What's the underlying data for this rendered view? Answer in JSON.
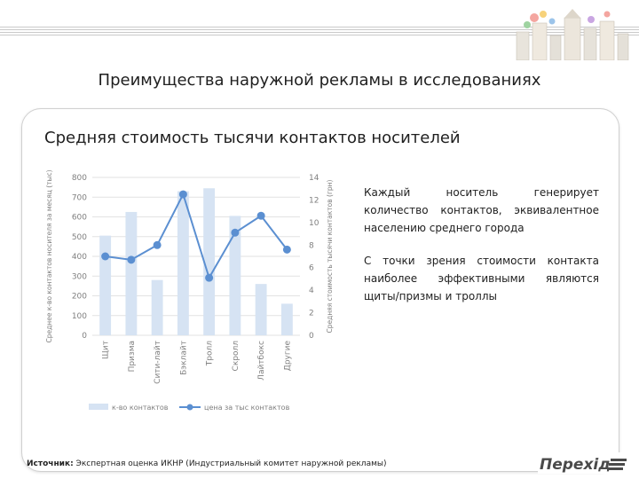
{
  "slide": {
    "title": "Преимущества наружной рекламы в исследованиях",
    "subtitle": "Средняя стоимость тысячи контактов носителей",
    "text1": "Каждый носитель генерирует количество контактов, эквивалентное населению среднего города",
    "text2": "С точки зрения стоимости контакта наиболее эффективными являются щиты/призмы и троллы",
    "source_label": "Источник:",
    "source_text": " Экспертная оценка ИКНР (Индустриальный комитет наружной рекламы)",
    "logo_text": "Перехід"
  },
  "chart_data": {
    "type": "bar",
    "categories": [
      "Щит",
      "Призма",
      "Сити-лайт",
      "Бэклайт",
      "Тролл",
      "Скролл",
      "Лайтбокс",
      "Другие"
    ],
    "series": [
      {
        "name": "к-во контактов",
        "kind": "bar",
        "axis": "left",
        "color": "#d6e3f3",
        "values": [
          505,
          625,
          280,
          730,
          745,
          605,
          260,
          160
        ]
      },
      {
        "name": "цена за тыс контактов",
        "kind": "line",
        "axis": "right",
        "color": "#5b8fd1",
        "values": [
          7.0,
          6.7,
          8.0,
          12.5,
          5.1,
          9.1,
          10.6,
          7.6
        ]
      }
    ],
    "ylabel": "Среднее к-во контактов носителя за месяц (тыс)",
    "y2label": "Средняя стоимость тысячи контактов (грн)",
    "ylim": [
      0,
      800
    ],
    "y2lim": [
      0,
      14
    ],
    "yticks": [
      "0",
      "100",
      "200",
      "300",
      "400",
      "500",
      "600",
      "700",
      "800"
    ],
    "y2ticks": [
      "0",
      "2",
      "4",
      "6",
      "8",
      "10",
      "12",
      "14"
    ],
    "grid": true,
    "legend": "bottom"
  },
  "colors": {
    "grid": "#e2e2e2",
    "axis_text": "#7f7f7f",
    "bar": "#d6e3f3",
    "line": "#5b8fd1"
  }
}
